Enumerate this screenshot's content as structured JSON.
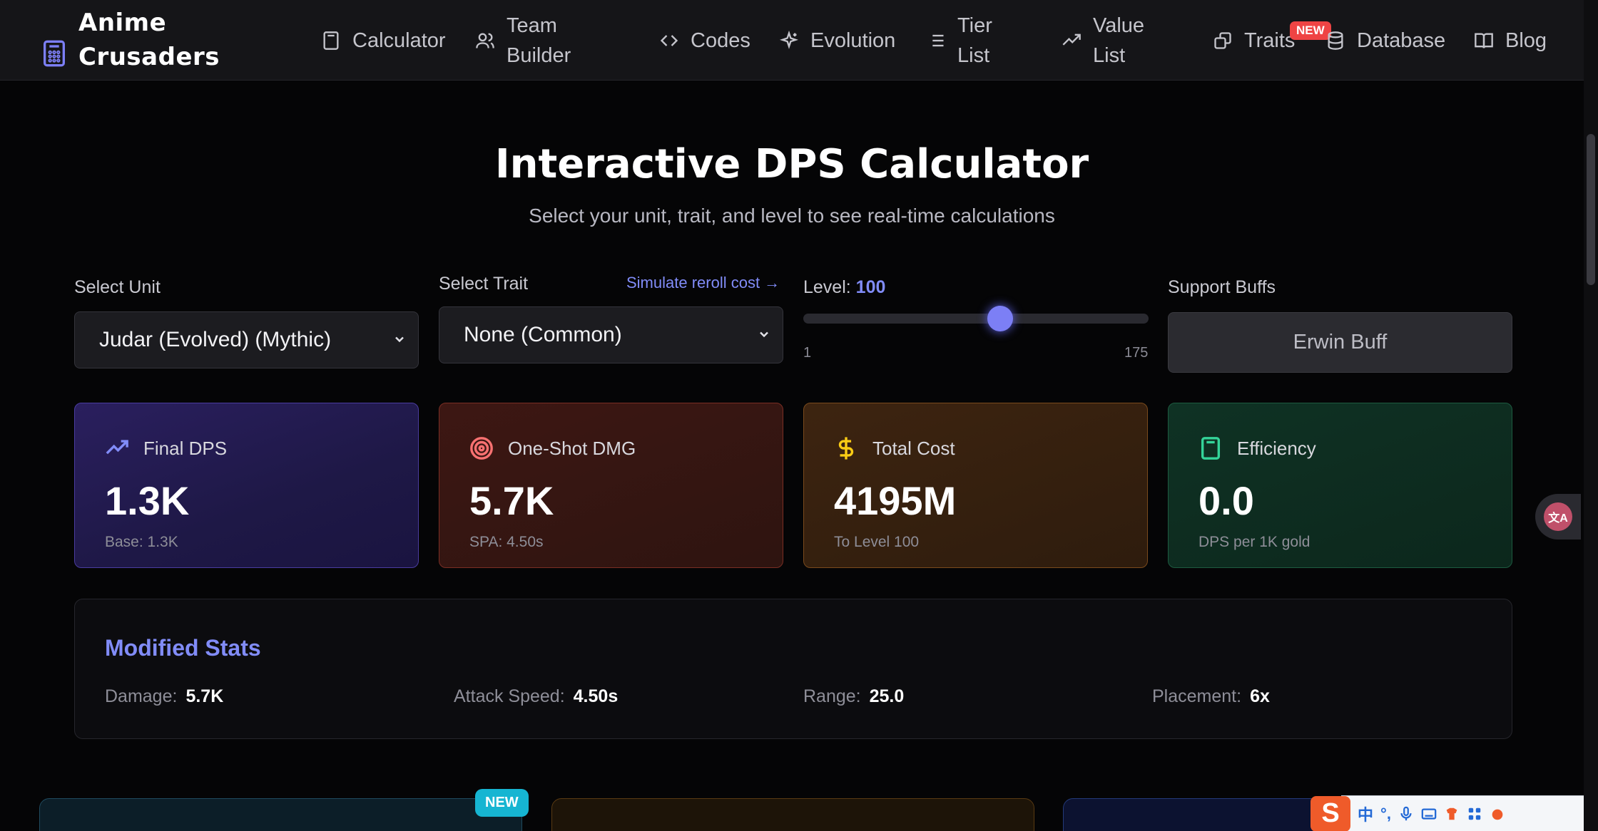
{
  "nav": {
    "brand_line1": "Anime",
    "brand_line2": "Crusaders",
    "items": [
      {
        "label_line1": "Calculator",
        "label_line2": ""
      },
      {
        "label_line1": "Team",
        "label_line2": "Builder"
      },
      {
        "label_line1": "Codes",
        "label_line2": ""
      },
      {
        "label_line1": "Evolution",
        "label_line2": ""
      },
      {
        "label_line1": "Tier",
        "label_line2": "List"
      },
      {
        "label_line1": "Value",
        "label_line2": "List"
      },
      {
        "label_line1": "Traits",
        "label_line2": ""
      },
      {
        "label_line1": "Database",
        "label_line2": ""
      },
      {
        "label_line1": "Blog",
        "label_line2": ""
      }
    ],
    "traits_badge": "NEW"
  },
  "hero": {
    "title": "Interactive DPS Calculator",
    "subtitle": "Select your unit, trait, and level to see real-time calculations"
  },
  "controls": {
    "unit_label": "Select Unit",
    "unit_value": "Judar (Evolved) (Mythic)",
    "trait_label": "Select Trait",
    "trait_value": "None (Common)",
    "reroll_link": "Simulate reroll cost →",
    "level_label": "Level:",
    "level_value": "100",
    "level_fraction": 0.57,
    "level_min": "1",
    "level_max": "175",
    "buffs_label": "Support Buffs",
    "buff_button": "Erwin Buff"
  },
  "cards": {
    "dps": {
      "title": "Final DPS",
      "value": "1.3K",
      "sub": "Base: 1.3K",
      "icon": "trending-up-icon"
    },
    "oneshot": {
      "title": "One-Shot DMG",
      "value": "5.7K",
      "sub": "SPA: 4.50s",
      "icon": "target-icon"
    },
    "cost": {
      "title": "Total Cost",
      "value": "4195M",
      "sub": "To Level 100",
      "icon": "dollar-icon"
    },
    "efficiency": {
      "title": "Efficiency",
      "value": "0.0",
      "sub": "DPS per 1K gold",
      "icon": "calculator-icon"
    }
  },
  "modified": {
    "title": "Modified Stats",
    "stats": [
      {
        "key": "Damage:",
        "value": "5.7K"
      },
      {
        "key": "Attack Speed:",
        "value": "4.50s"
      },
      {
        "key": "Range:",
        "value": "25.0"
      },
      {
        "key": "Placement:",
        "value": "6x"
      }
    ]
  },
  "bottom": {
    "new_badge": "NEW"
  },
  "ime": {
    "logo": "S",
    "mode": "中",
    "punct": "°,"
  },
  "colors": {
    "accent": "#818cf8",
    "new_badge": "#ef4444",
    "cyan_badge": "#16b5d2"
  }
}
